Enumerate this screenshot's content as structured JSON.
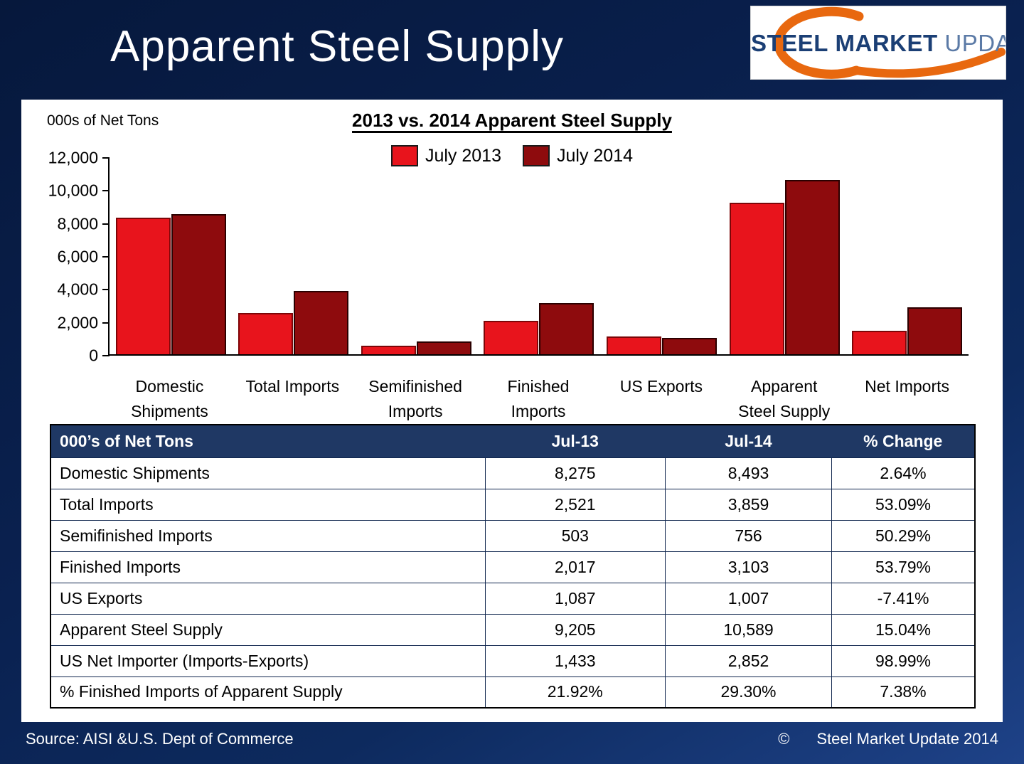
{
  "header": {
    "title": "Apparent Steel Supply",
    "logo": {
      "steel": "STEEL",
      "market": "MARKET",
      "update": "UPDATE",
      "swoosh_color": "#e8680f"
    }
  },
  "chart": {
    "units_label": "000s of Net Tons",
    "title": "2013 vs. 2014 Apparent Steel Supply",
    "legend": [
      {
        "label": "July 2013",
        "color": "#e8141c"
      },
      {
        "label": "July 2014",
        "color": "#8e0b0d"
      }
    ]
  },
  "chart_data": {
    "type": "bar",
    "title": "2013 vs. 2014 Apparent Steel Supply",
    "ylabel": "000s of Net Tons",
    "xlabel": "",
    "ylim": [
      0,
      12000
    ],
    "yticks": [
      "12,000",
      "10,000",
      "8,000",
      "6,000",
      "4,000",
      "2,000",
      "0"
    ],
    "grid": false,
    "legend_position": "top",
    "categories": [
      "Domestic Shipments",
      "Total Imports",
      "Semifinished Imports",
      "Finished Imports",
      "US Exports",
      "Apparent Steel Supply",
      "Net Imports"
    ],
    "series": [
      {
        "name": "July 2013",
        "color": "#e8141c",
        "values": [
          8275,
          2521,
          503,
          2017,
          1087,
          9205,
          1433
        ]
      },
      {
        "name": "July 2014",
        "color": "#8e0b0d",
        "values": [
          8493,
          3859,
          756,
          3103,
          1007,
          10589,
          2852
        ]
      }
    ]
  },
  "table": {
    "headers": [
      "000’s of Net Tons",
      "Jul-13",
      "Jul-14",
      "% Change"
    ],
    "rows": [
      [
        "Domestic Shipments",
        "8,275",
        "8,493",
        "2.64%"
      ],
      [
        "Total Imports",
        "2,521",
        "3,859",
        "53.09%"
      ],
      [
        "Semifinished Imports",
        "503",
        "756",
        "50.29%"
      ],
      [
        "Finished Imports",
        "2,017",
        "3,103",
        "53.79%"
      ],
      [
        "US Exports",
        "1,087",
        "1,007",
        "-7.41%"
      ],
      [
        "Apparent Steel Supply",
        "9,205",
        "10,589",
        "15.04%"
      ],
      [
        "US Net Importer (Imports-Exports)",
        "1,433",
        "2,852",
        "98.99%"
      ],
      [
        "% Finished Imports of Apparent Supply",
        "21.92%",
        "29.30%",
        "7.38%"
      ]
    ]
  },
  "footer": {
    "source": "Source:  AISI &U.S. Dept of Commerce",
    "copyright_symbol": "©",
    "copyright_text": "Steel Market Update 2014"
  }
}
